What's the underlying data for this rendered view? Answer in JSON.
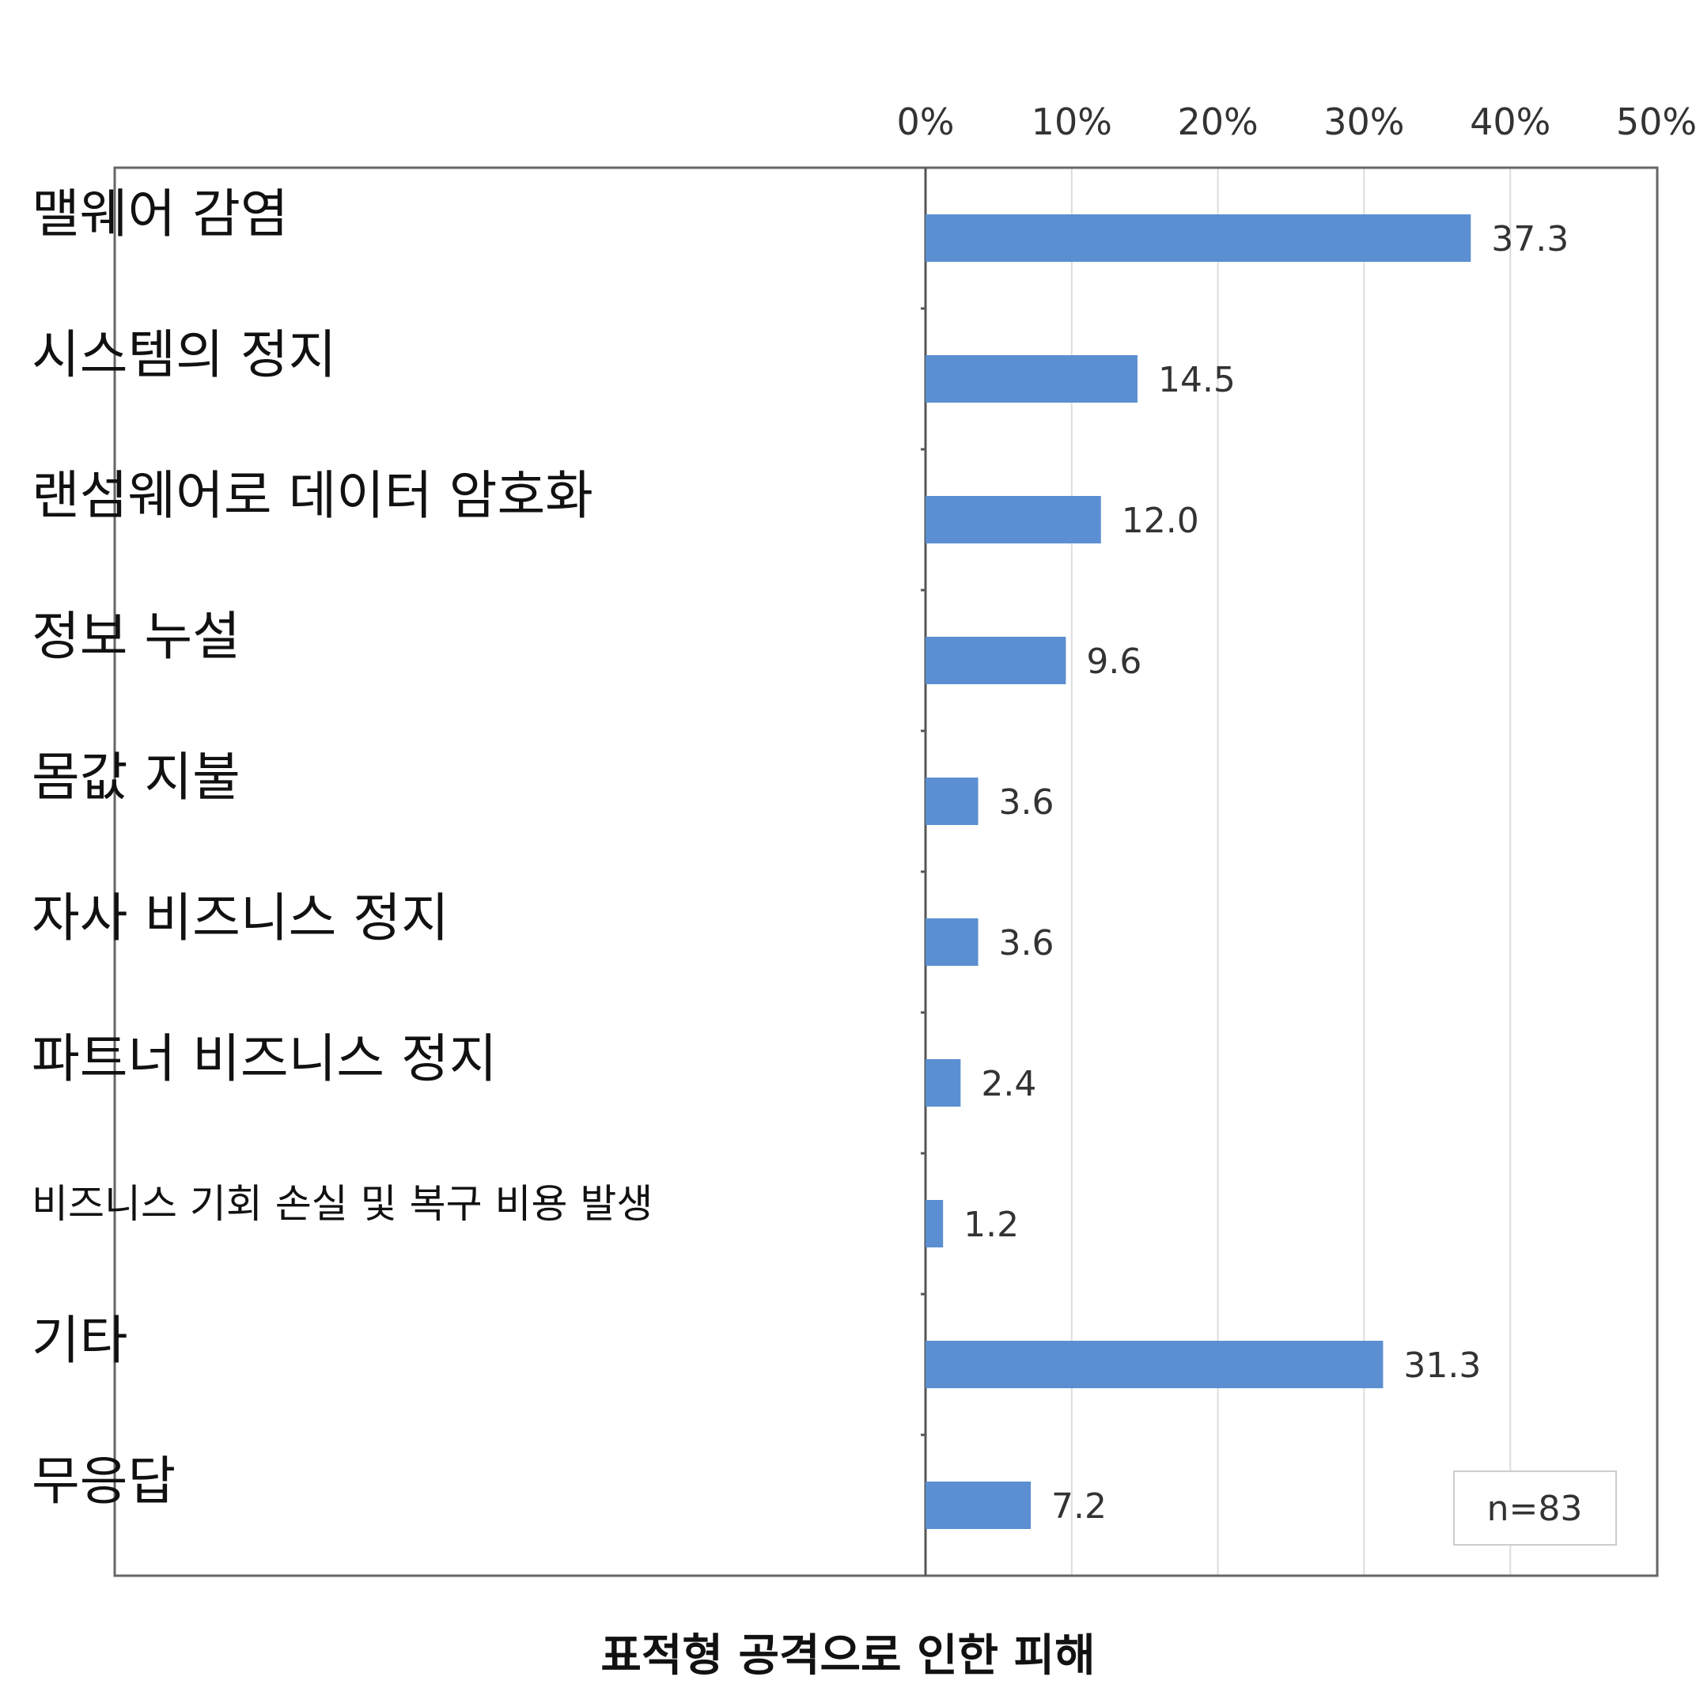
{
  "chart_data": {
    "type": "bar",
    "orientation": "horizontal",
    "title": "표적형 공격으로 인한 피해",
    "categories": [
      "맬웨어 감염",
      "시스템의 정지",
      "랜섬웨어로 데이터 암호화",
      "정보 누설",
      "몸값 지불",
      "자사 비즈니스 정지",
      "파트너 비즈니스 정지",
      "비즈니스 기회 손실 및 복구 비용 발생",
      "기타",
      "무응답"
    ],
    "values": [
      37.3,
      14.5,
      12.0,
      9.6,
      3.6,
      3.6,
      2.4,
      1.2,
      31.3,
      7.2
    ],
    "value_labels": [
      "37.3",
      "14.5",
      "12.0",
      "9.6",
      "3.6",
      "3.6",
      "2.4",
      "1.2",
      "31.3",
      "7.2"
    ],
    "xlim": [
      0,
      50
    ],
    "x_ticks": [
      "0%",
      "10%",
      "20%",
      "30%",
      "40%",
      "50%"
    ],
    "x_axis_position": "top",
    "grid": "vertical",
    "legend": "none",
    "note": "n=83",
    "bar_color": "#5b8fd1"
  }
}
